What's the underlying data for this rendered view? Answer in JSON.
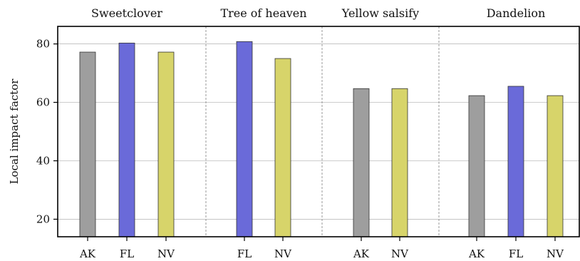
{
  "chart_data": {
    "type": "bar",
    "ylabel": "Local impact factor",
    "ylim": [
      14,
      86
    ],
    "yticks": [
      20,
      40,
      60,
      80
    ],
    "grid": "horizontal",
    "groups": [
      {
        "title": "Sweetclover",
        "bars": [
          {
            "label": "AK",
            "value": 77.2,
            "color": "#9e9e9e"
          },
          {
            "label": "FL",
            "value": 80.3,
            "color": "#6a6ad9"
          },
          {
            "label": "NV",
            "value": 77.2,
            "color": "#d7d46a"
          }
        ]
      },
      {
        "title": "Tree of heaven",
        "bars": [
          {
            "label": "FL",
            "value": 80.8,
            "color": "#6a6ad9"
          },
          {
            "label": "NV",
            "value": 75.0,
            "color": "#d7d46a"
          }
        ]
      },
      {
        "title": "Yellow salsify",
        "bars": [
          {
            "label": "AK",
            "value": 64.7,
            "color": "#9e9e9e"
          },
          {
            "label": "NV",
            "value": 64.7,
            "color": "#d7d46a"
          }
        ]
      },
      {
        "title": "Dandelion",
        "bars": [
          {
            "label": "AK",
            "value": 62.3,
            "color": "#9e9e9e"
          },
          {
            "label": "FL",
            "value": 65.5,
            "color": "#6a6ad9"
          },
          {
            "label": "NV",
            "value": 62.3,
            "color": "#d7d46a"
          }
        ]
      }
    ]
  }
}
